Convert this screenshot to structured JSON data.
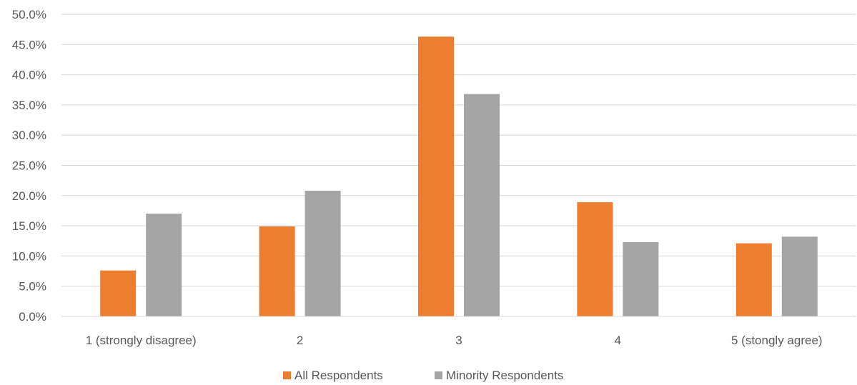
{
  "chart_data": {
    "type": "bar",
    "categories": [
      "1 (strongly disagree)",
      "2",
      "3",
      "4",
      "5 (stongly agree)"
    ],
    "series": [
      {
        "name": "All Respondents",
        "color": "#ED7D31",
        "values": [
          7.6,
          14.9,
          46.3,
          18.9,
          12.1
        ]
      },
      {
        "name": "Minority Respondents",
        "color": "#A5A5A5",
        "values": [
          17.0,
          20.8,
          36.8,
          12.3,
          13.2
        ]
      }
    ],
    "ylim": [
      0,
      50
    ],
    "yticks": [
      "0.0%",
      "5.0%",
      "10.0%",
      "15.0%",
      "20.0%",
      "25.0%",
      "30.0%",
      "35.0%",
      "40.0%",
      "45.0%",
      "50.0%"
    ],
    "grid": true,
    "legend_position": "bottom"
  }
}
